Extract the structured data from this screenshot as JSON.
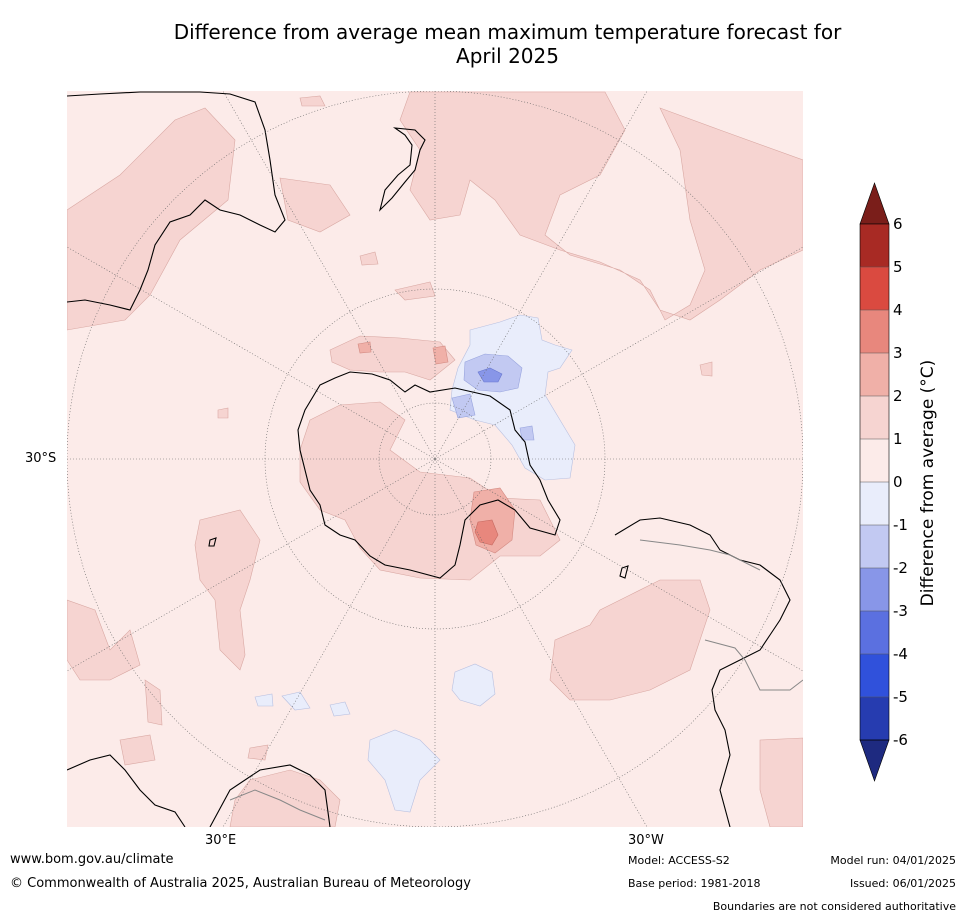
{
  "title_line1": "Difference from average mean maximum temperature forecast for",
  "title_line2": "April 2025",
  "map": {
    "lat_label": "30°S",
    "lon_labels": [
      "30°E",
      "30°W"
    ]
  },
  "colorbar": {
    "label": "Difference from average (°C)",
    "ticks": [
      "6",
      "5",
      "4",
      "3",
      "2",
      "1",
      "0",
      "-1",
      "-2",
      "-3",
      "-4",
      "-5",
      "-6"
    ],
    "colors_top_to_bottom": [
      "#a82a24",
      "#da4a40",
      "#e8877d",
      "#f0b0a8",
      "#f6d4d1",
      "#fcebe9",
      "#e9edfb",
      "#c2c9f2",
      "#8896e8",
      "#5b70e0",
      "#3051db",
      "#263cb0"
    ],
    "overflow_high_color": "#7a1e1a",
    "overflow_low_color": "#1e2a80"
  },
  "footer": {
    "website": "www.bom.gov.au/climate",
    "copyright": "© Commonwealth of Australia 2025, Australian Bureau of Meteorology",
    "model": "Model: ACCESS-S2",
    "base_period": "Base period: 1981-2018",
    "model_run": "Model run: 04/01/2025",
    "issued": "Issued: 06/01/2025",
    "disclaimer": "Boundaries are not considered authoritative"
  }
}
